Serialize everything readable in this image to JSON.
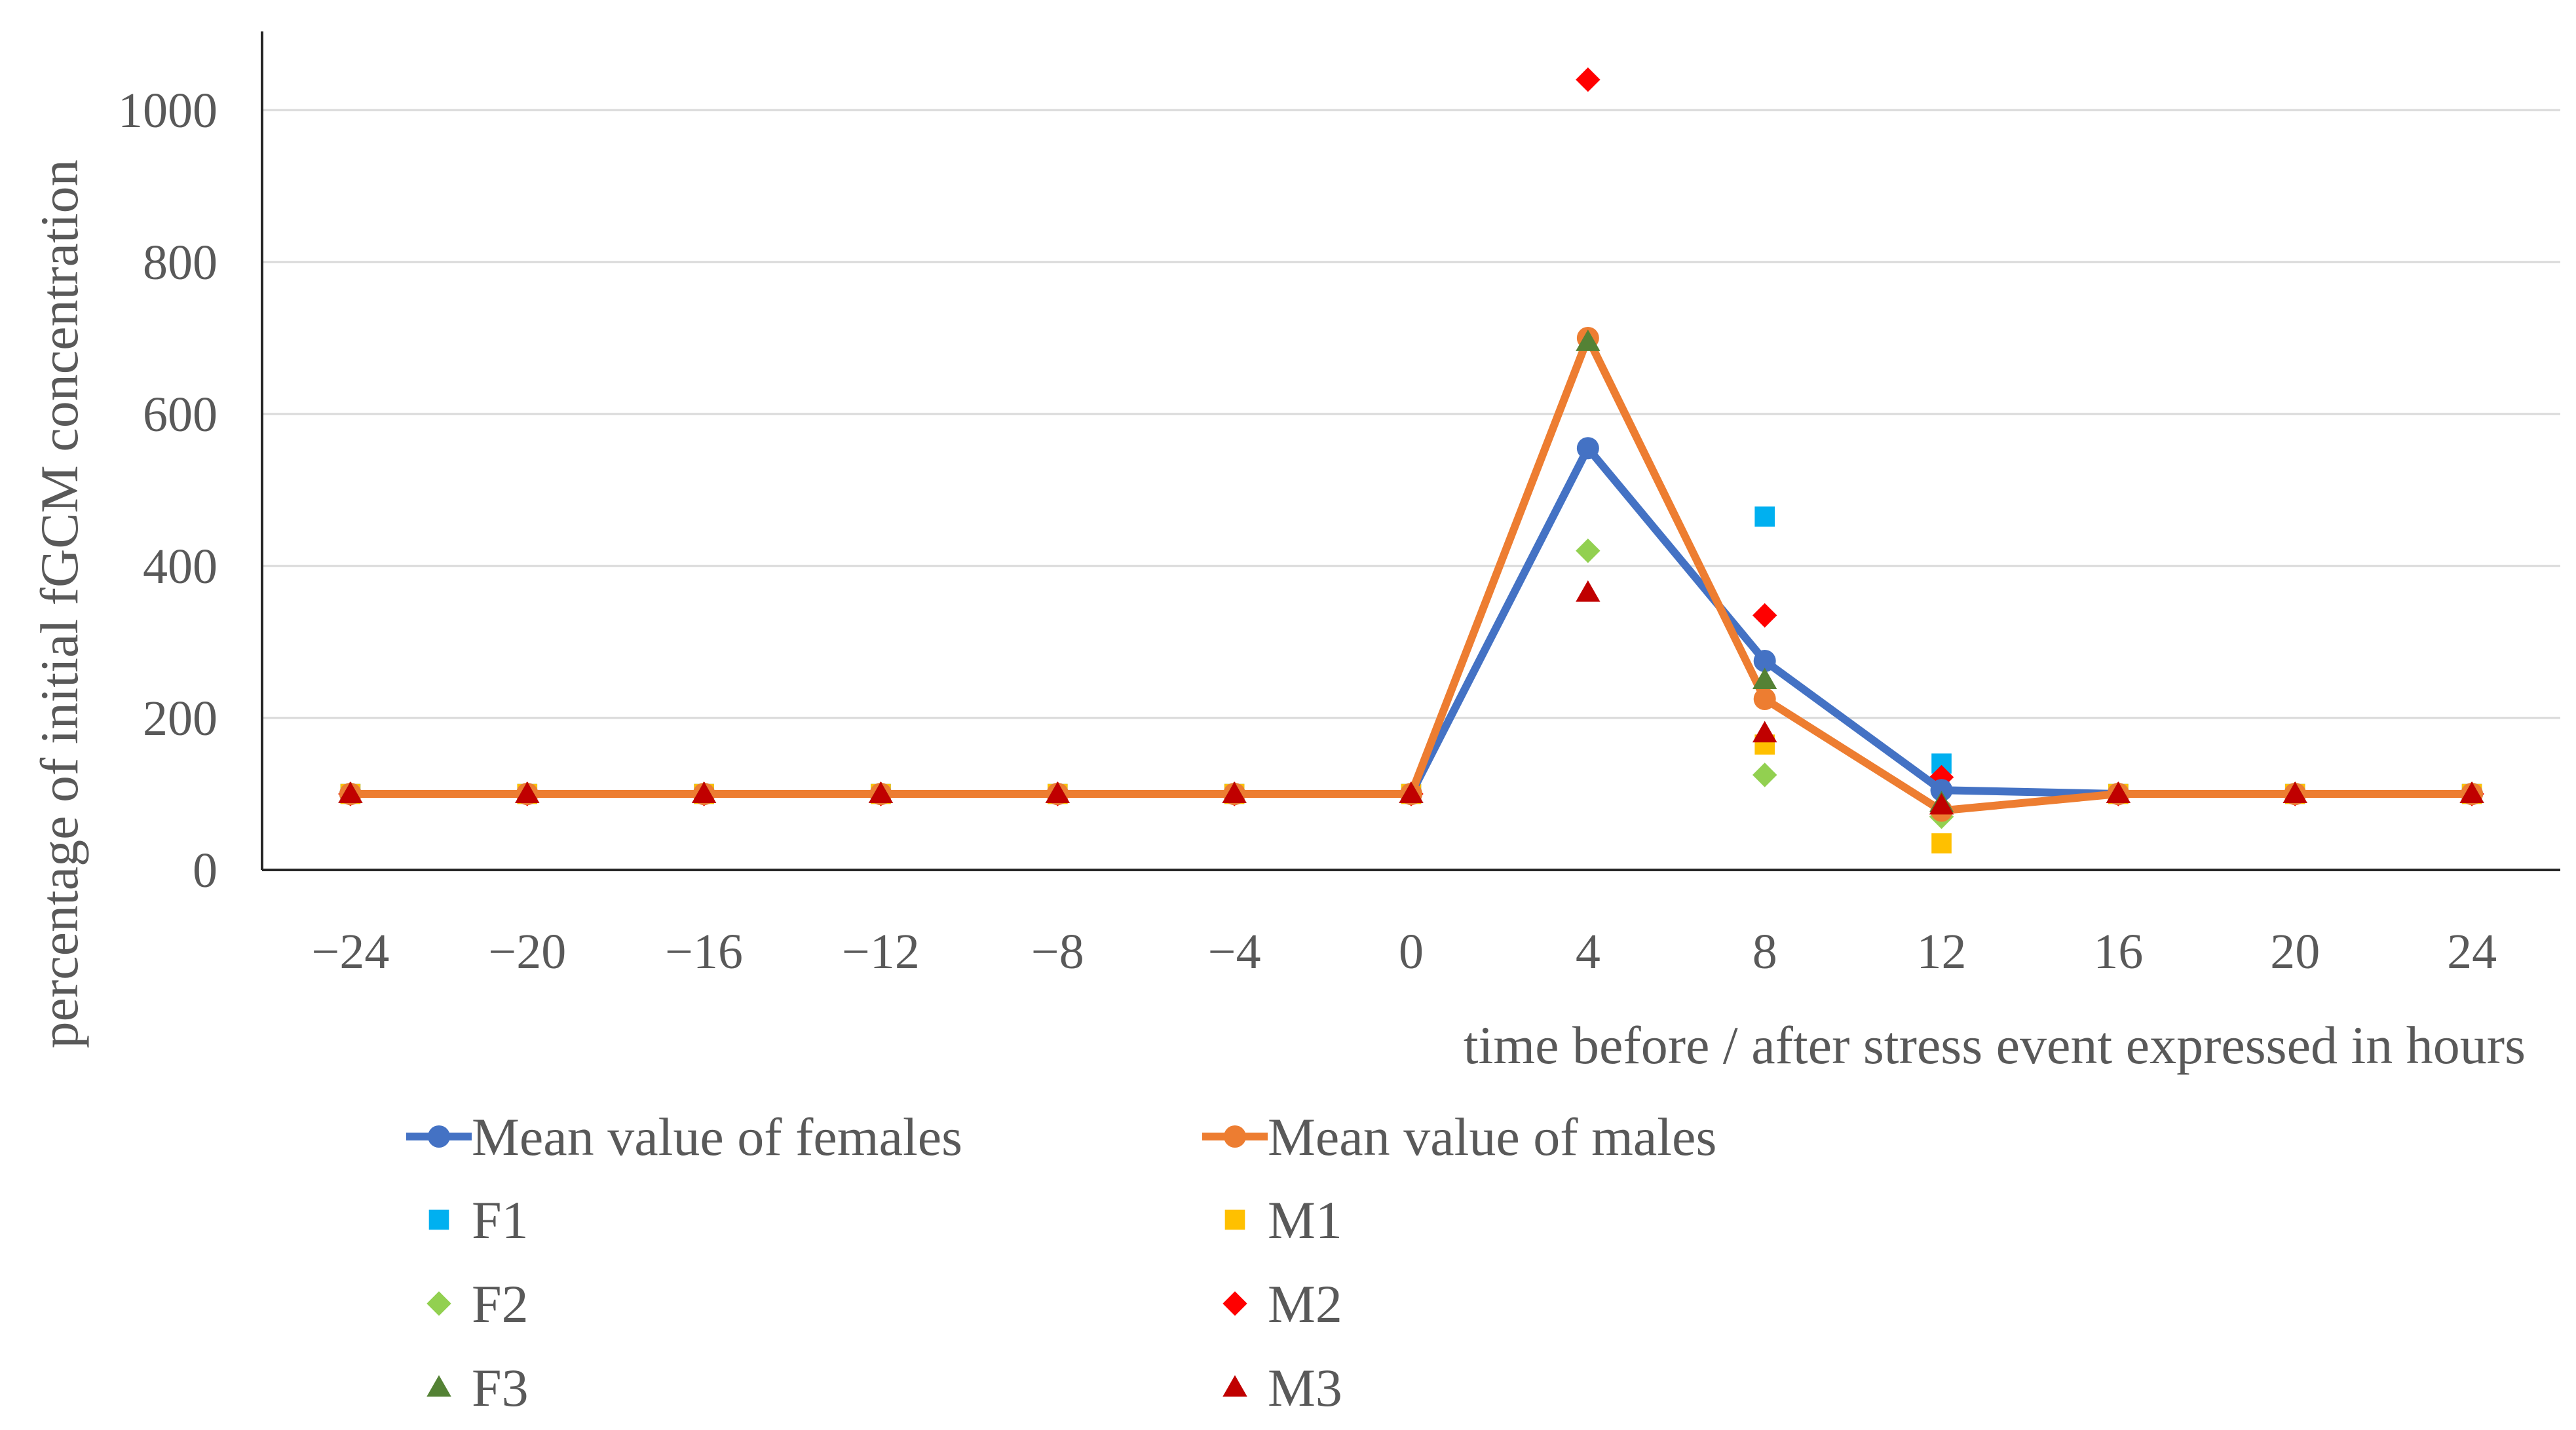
{
  "chart_data": {
    "type": "line",
    "title": "",
    "xlabel": "time before / after stress event expressed  in hours",
    "ylabel": "percentage of initial fGCM concentration",
    "x": [
      -24,
      -20,
      -16,
      -12,
      -8,
      -4,
      0,
      4,
      8,
      12,
      16,
      20,
      24
    ],
    "x_tick_labels": [
      "−24",
      "−20",
      "−16",
      "−12",
      "−8",
      "−4",
      "0",
      "4",
      "8",
      "12",
      "16",
      "20",
      "24"
    ],
    "ylim": [
      0,
      1100
    ],
    "y_ticks": [
      0,
      200,
      400,
      600,
      800,
      1000
    ],
    "y_tick_labels": [
      "0",
      "200",
      "400",
      "600",
      "800",
      "1000"
    ],
    "grid": "horizontal",
    "legend_position": "bottom",
    "series": [
      {
        "name": "Mean value of females",
        "kind": "line",
        "marker": "circle",
        "color": "#4472C4",
        "values": [
          100,
          100,
          100,
          100,
          100,
          100,
          100,
          555,
          275,
          105,
          100,
          100,
          100
        ]
      },
      {
        "name": "Mean value of males",
        "kind": "line",
        "marker": "circle",
        "color": "#ED7D31",
        "values": [
          100,
          100,
          100,
          100,
          100,
          100,
          100,
          700,
          225,
          78,
          100,
          100,
          100
        ]
      },
      {
        "name": "F1",
        "kind": "scatter",
        "marker": "square",
        "color": "#00B0F0",
        "values": [
          100,
          100,
          100,
          100,
          100,
          100,
          100,
          null,
          465,
          140,
          100,
          100,
          100
        ]
      },
      {
        "name": "M1",
        "kind": "scatter",
        "marker": "square",
        "color": "#FFC000",
        "values": [
          100,
          100,
          100,
          100,
          100,
          100,
          100,
          null,
          165,
          35,
          100,
          100,
          100
        ]
      },
      {
        "name": "F2",
        "kind": "scatter",
        "marker": "diamond",
        "color": "#92D050",
        "values": [
          100,
          100,
          100,
          100,
          100,
          100,
          100,
          420,
          125,
          70,
          100,
          100,
          100
        ]
      },
      {
        "name": "M2",
        "kind": "scatter",
        "marker": "diamond",
        "color": "#FF0000",
        "values": [
          100,
          100,
          100,
          100,
          100,
          100,
          100,
          1040,
          335,
          122,
          100,
          100,
          100
        ]
      },
      {
        "name": "F3",
        "kind": "scatter",
        "marker": "triangle",
        "color": "#548235",
        "values": [
          100,
          100,
          100,
          100,
          100,
          100,
          100,
          695,
          250,
          88,
          100,
          100,
          100
        ]
      },
      {
        "name": "M3",
        "kind": "scatter",
        "marker": "triangle",
        "color": "#C00000",
        "values": [
          100,
          100,
          100,
          100,
          100,
          100,
          100,
          365,
          180,
          85,
          100,
          100,
          100
        ]
      }
    ]
  }
}
